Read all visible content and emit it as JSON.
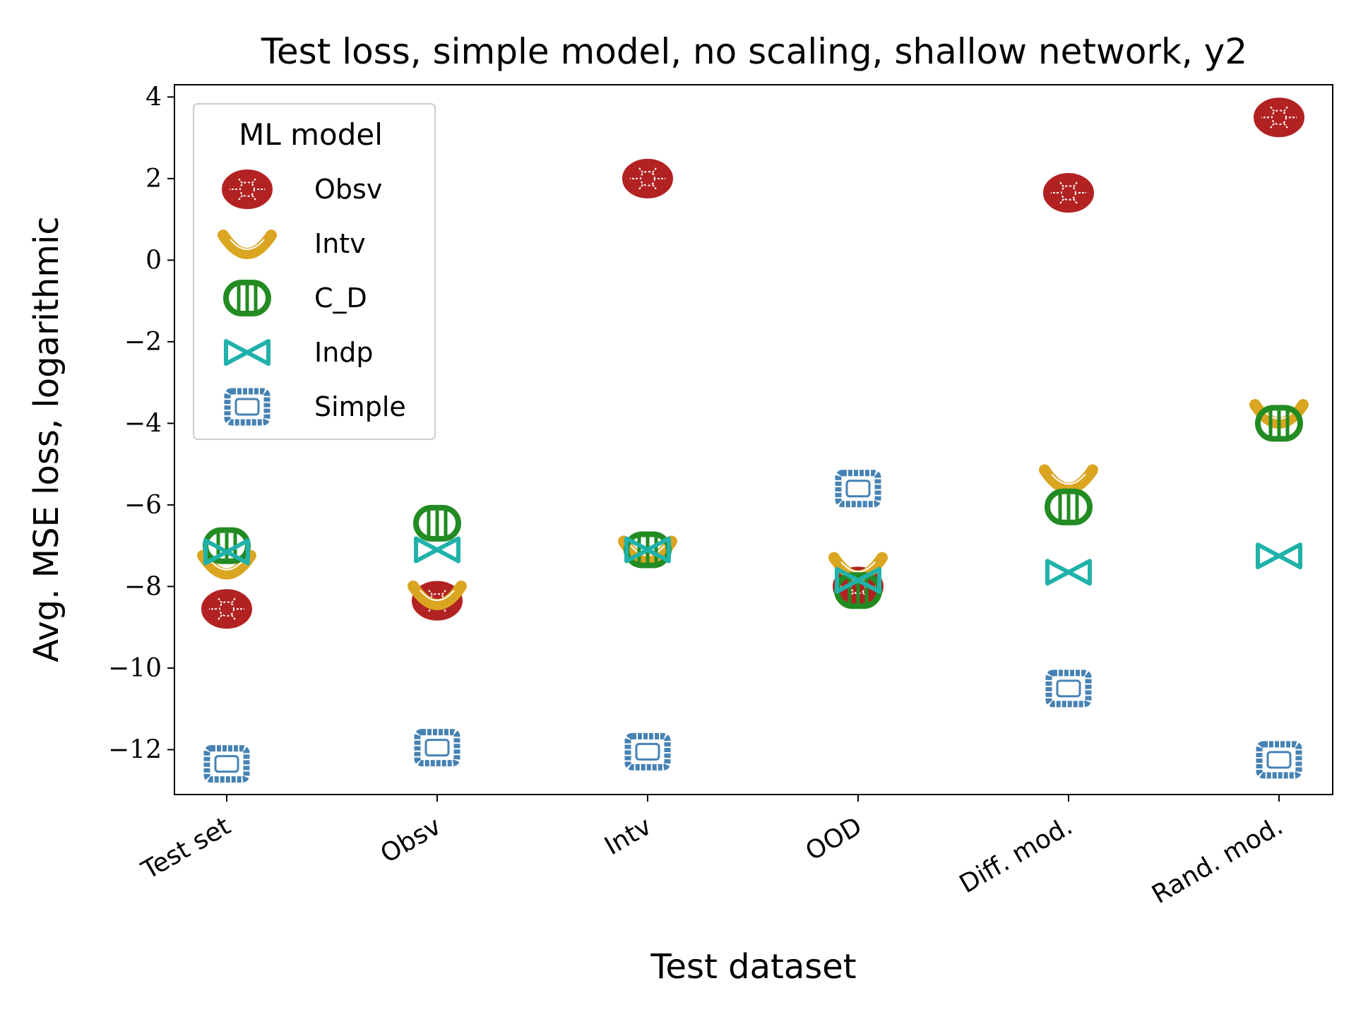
{
  "chart_data": {
    "type": "scatter",
    "title": "Test loss, simple model, no scaling, shallow network, y2",
    "xlabel": "Test dataset",
    "ylabel": "Avg. MSE loss, logarithmic",
    "categories": [
      "Test set",
      "Obsv",
      "Intv",
      "OOD",
      "Diff. mod.",
      "Rand. mod."
    ],
    "ylim": [
      -13.1,
      4.3
    ],
    "yticks": [
      4,
      2,
      0,
      -2,
      -4,
      -6,
      -8,
      -10,
      -12
    ],
    "ytick_labels": [
      "4",
      "2",
      "0",
      "−2",
      "−4",
      "−6",
      "−8",
      "−10",
      "−12"
    ],
    "grid": false,
    "legend": {
      "title": "ML model",
      "placement": "top-left"
    },
    "series": [
      {
        "name": "Obsv",
        "color": "#b22222",
        "marker": "rotelle",
        "values": [
          -8.55,
          -8.35,
          2.0,
          -8.0,
          1.65,
          3.5
        ]
      },
      {
        "name": "Intv",
        "color": "#daa520",
        "marker": "macaroni",
        "values": [
          -7.45,
          -8.2,
          -7.1,
          -7.5,
          -5.35,
          -3.75
        ]
      },
      {
        "name": "C_D",
        "color": "#228b22",
        "marker": "rigatoni",
        "values": [
          -7.0,
          -6.45,
          -7.1,
          -8.1,
          -6.05,
          -4.0
        ]
      },
      {
        "name": "Indp",
        "color": "#20b2aa",
        "marker": "farfalle",
        "values": [
          -7.15,
          -7.1,
          -7.1,
          -7.85,
          -7.65,
          -7.25
        ]
      },
      {
        "name": "Simple",
        "color": "#4682b4",
        "marker": "ravioli",
        "values": [
          -12.35,
          -11.95,
          -12.05,
          -5.6,
          -10.5,
          -12.25
        ]
      }
    ]
  }
}
